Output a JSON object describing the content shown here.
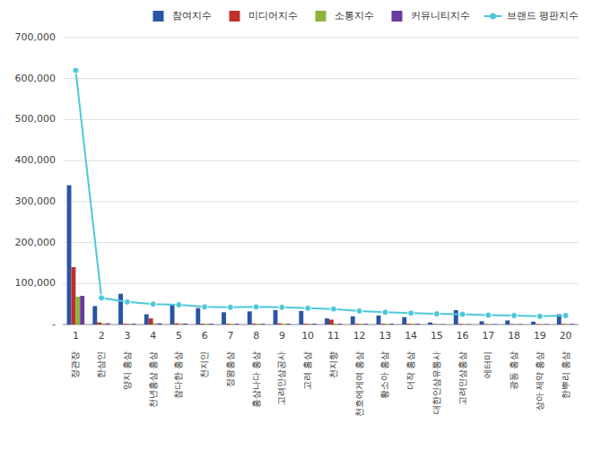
{
  "chart_data": {
    "type": "bar",
    "categories": [
      "1",
      "2",
      "3",
      "4",
      "5",
      "6",
      "7",
      "8",
      "9",
      "10",
      "11",
      "12",
      "13",
      "14",
      "15",
      "16",
      "17",
      "18",
      "19",
      "20"
    ],
    "annotations": [
      "정관장",
      "한삼인",
      "양지 홍삼",
      "천년홍삼 홍삼",
      "참다한 홍삼",
      "천지인",
      "정왕홍삼",
      "홍삼나다 홍삼",
      "고려인삼공사",
      "고려 홍삼",
      "천지향",
      "천호에게여 홍삼",
      "황소아 홍삼",
      "더작 홍삼",
      "대한인삼유통사",
      "고려인삼홍삼",
      "에터미",
      "광동 홍삼",
      "상아 제약 홍삼",
      "한뿌리 홍삼"
    ],
    "series": [
      {
        "name": "참여지수",
        "type": "bar",
        "color": "#2955a3",
        "values": [
          340000,
          45000,
          75000,
          25000,
          50000,
          40000,
          30000,
          32000,
          35000,
          33000,
          15000,
          20000,
          22000,
          18000,
          5000,
          35000,
          8000,
          10000,
          7000,
          25000
        ]
      },
      {
        "name": "미디어지수",
        "type": "bar",
        "color": "#c0302b",
        "values": [
          140000,
          5000,
          2000,
          15000,
          3000,
          2000,
          2000,
          2500,
          3000,
          2000,
          12000,
          2000,
          2000,
          2000,
          1000,
          1500,
          1000,
          1000,
          1000,
          1500
        ]
      },
      {
        "name": "소통지수",
        "type": "bar",
        "color": "#8db43a",
        "values": [
          68000,
          3000,
          2000,
          3000,
          2500,
          2000,
          2000,
          2000,
          2000,
          2000,
          2000,
          2000,
          2000,
          2000,
          1000,
          1000,
          1000,
          1000,
          1000,
          1500
        ]
      },
      {
        "name": "커뮤니티지수",
        "type": "bar",
        "color": "#6b3a9e",
        "values": [
          70000,
          3000,
          2000,
          3000,
          2500,
          2000,
          2000,
          2000,
          2000,
          2000,
          2000,
          2000,
          2000,
          2000,
          1000,
          1000,
          1000,
          1000,
          1000,
          1500
        ]
      },
      {
        "name": "브랜드 평판지수",
        "type": "line",
        "marker": "circle",
        "color": "#4dc8d8",
        "values": [
          620000,
          65000,
          55000,
          50000,
          48000,
          43000,
          42000,
          43000,
          42000,
          40000,
          38000,
          33000,
          30000,
          28000,
          26000,
          25000,
          23000,
          22000,
          20000,
          22000
        ]
      }
    ],
    "ylim": [
      0,
      700000
    ],
    "yticks": [
      {
        "value": 0,
        "label": "-"
      },
      {
        "value": 100000,
        "label": "100,000"
      },
      {
        "value": 200000,
        "label": "200,000"
      },
      {
        "value": 300000,
        "label": "300,000"
      },
      {
        "value": 400000,
        "label": "400,000"
      },
      {
        "value": 500000,
        "label": "500,000"
      },
      {
        "value": 600000,
        "label": "600,000"
      },
      {
        "value": 700000,
        "label": "700,000"
      }
    ],
    "grid": true,
    "legend": "upper right"
  }
}
